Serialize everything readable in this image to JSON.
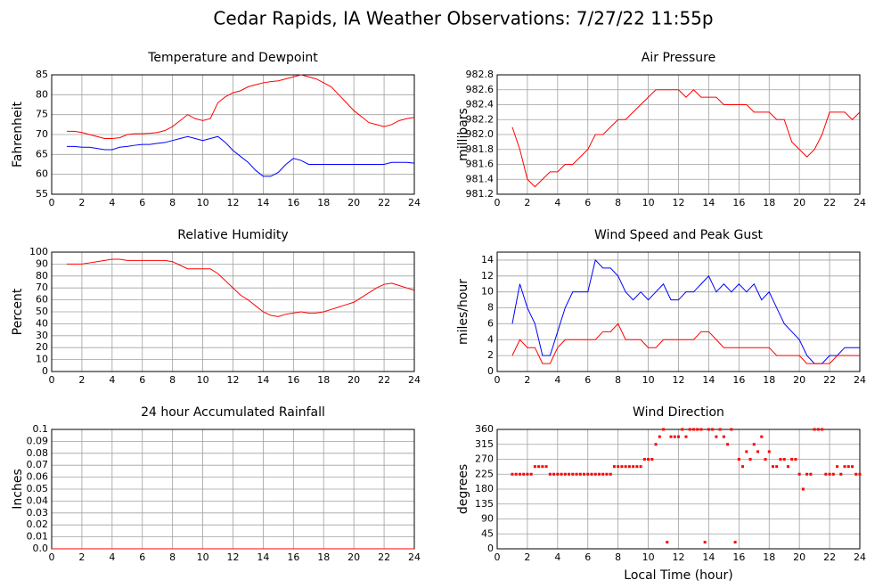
{
  "title": "Cedar Rapids, IA Weather Observations: 7/27/22 11:55p",
  "chart_data": [
    {
      "type": "line",
      "title": "Temperature and Dewpoint",
      "ylabel": "Fahrenheit",
      "x": [
        1,
        1.5,
        2,
        2.5,
        3,
        3.5,
        4,
        4.5,
        5,
        5.5,
        6,
        6.5,
        7,
        7.5,
        8,
        8.5,
        9,
        9.5,
        10,
        10.5,
        11,
        11.5,
        12,
        12.5,
        13,
        13.5,
        14,
        14.5,
        15,
        15.5,
        16,
        16.5,
        17,
        17.5,
        18,
        18.5,
        19,
        19.5,
        20,
        20.5,
        21,
        21.5,
        22,
        22.5,
        23,
        23.5,
        24
      ],
      "series": [
        {
          "color": "#ff0000",
          "values": [
            70.8,
            70.8,
            70.5,
            70,
            69.5,
            69,
            69,
            69.2,
            70,
            70.2,
            70.2,
            70.3,
            70.5,
            71,
            72,
            73.5,
            75,
            74,
            73.5,
            74,
            78,
            79.5,
            80.5,
            81,
            82,
            82.5,
            83,
            83.3,
            83.5,
            84,
            84.5,
            85,
            84.5,
            84,
            83,
            82,
            80,
            78,
            76,
            74.5,
            73,
            72.5,
            72,
            72.5,
            73.5,
            74,
            74.3
          ]
        },
        {
          "color": "#0000ff",
          "values": [
            67,
            67,
            66.8,
            66.8,
            66.5,
            66.2,
            66.2,
            66.8,
            67,
            67.3,
            67.5,
            67.5,
            67.8,
            68,
            68.5,
            69,
            69.5,
            69,
            68.5,
            69,
            69.5,
            68,
            66,
            64.5,
            63,
            61,
            59.5,
            59.5,
            60.5,
            62.5,
            64,
            63.5,
            62.5,
            62.5,
            62.5,
            62.5,
            62.5,
            62.5,
            62.5,
            62.5,
            62.5,
            62.5,
            62.5,
            63,
            63,
            63,
            62.8
          ]
        }
      ],
      "xlim": [
        0,
        24
      ],
      "xticks": [
        0,
        2,
        4,
        6,
        8,
        10,
        12,
        14,
        16,
        18,
        20,
        22,
        24
      ],
      "ylim": [
        55,
        85
      ],
      "yticks": [
        55,
        60,
        65,
        70,
        75,
        80,
        85
      ],
      "grid": true
    },
    {
      "type": "line",
      "title": "Air Pressure",
      "ylabel": "millibars",
      "x": [
        1,
        1.5,
        2,
        2.5,
        3,
        3.5,
        4,
        4.5,
        5,
        5.5,
        6,
        6.5,
        7,
        7.5,
        8,
        8.5,
        9,
        9.5,
        10,
        10.5,
        11,
        11.5,
        12,
        12.5,
        13,
        13.5,
        14,
        14.5,
        15,
        15.5,
        16,
        16.5,
        17,
        17.5,
        18,
        18.5,
        19,
        19.5,
        20,
        20.5,
        21,
        21.5,
        22,
        22.5,
        23,
        23.5,
        24
      ],
      "values": [
        982.1,
        981.8,
        981.4,
        981.3,
        981.4,
        981.5,
        981.5,
        981.6,
        981.6,
        981.7,
        981.8,
        982.0,
        982.0,
        982.1,
        982.2,
        982.2,
        982.3,
        982.4,
        982.5,
        982.6,
        982.6,
        982.6,
        982.6,
        982.5,
        982.6,
        982.5,
        982.5,
        982.5,
        982.4,
        982.4,
        982.4,
        982.4,
        982.3,
        982.3,
        982.3,
        982.2,
        982.2,
        981.9,
        981.8,
        981.7,
        981.8,
        982.0,
        982.3,
        982.3,
        982.3,
        982.2,
        982.3
      ],
      "color": "#ff0000",
      "xlim": [
        0,
        24
      ],
      "xticks": [
        0,
        2,
        4,
        6,
        8,
        10,
        12,
        14,
        16,
        18,
        20,
        22,
        24
      ],
      "ylim": [
        981.2,
        982.8
      ],
      "yticks": [
        981.2,
        981.4,
        981.6,
        981.8,
        {
          "value": 982,
          "label": "982.0"
        },
        982.2,
        982.4,
        982.6,
        982.8
      ],
      "grid": true
    },
    {
      "type": "line",
      "title": "Relative Humidity",
      "ylabel": "Percent",
      "x": [
        1,
        1.5,
        2,
        2.5,
        3,
        3.5,
        4,
        4.5,
        5,
        5.5,
        6,
        6.5,
        7,
        7.5,
        8,
        8.5,
        9,
        9.5,
        10,
        10.5,
        11,
        11.5,
        12,
        12.5,
        13,
        13.5,
        14,
        14.5,
        15,
        15.5,
        16,
        16.5,
        17,
        17.5,
        18,
        18.5,
        19,
        19.5,
        20,
        20.5,
        21,
        21.5,
        22,
        22.5,
        23,
        23.5,
        24
      ],
      "values": [
        90,
        90,
        90,
        91,
        92,
        93,
        94,
        94,
        93,
        93,
        93,
        93,
        93,
        93,
        92,
        89,
        86,
        86,
        86,
        86,
        82,
        76,
        70,
        64,
        60,
        55,
        50,
        47,
        46,
        48,
        49,
        50,
        49,
        49,
        50,
        52,
        54,
        56,
        58,
        62,
        66,
        70,
        73,
        74,
        72,
        70,
        68
      ],
      "color": "#ff0000",
      "xlim": [
        0,
        24
      ],
      "xticks": [
        0,
        2,
        4,
        6,
        8,
        10,
        12,
        14,
        16,
        18,
        20,
        22,
        24
      ],
      "ylim": [
        0,
        100
      ],
      "yticks": [
        0,
        10,
        20,
        30,
        40,
        50,
        60,
        70,
        80,
        90,
        100
      ],
      "grid": true
    },
    {
      "type": "line",
      "title": "Wind Speed and Peak Gust",
      "ylabel": "miles/hour",
      "x": [
        1,
        1.5,
        2,
        2.5,
        3,
        3.5,
        4,
        4.5,
        5,
        5.5,
        6,
        6.5,
        7,
        7.5,
        8,
        8.5,
        9,
        9.5,
        10,
        10.5,
        11,
        11.5,
        12,
        12.5,
        13,
        13.5,
        14,
        14.5,
        15,
        15.5,
        16,
        16.5,
        17,
        17.5,
        18,
        18.5,
        19,
        19.5,
        20,
        20.5,
        21,
        21.5,
        22,
        22.5,
        23,
        23.5,
        24
      ],
      "series": [
        {
          "color": "#0000ff",
          "values": [
            6,
            11,
            8,
            6,
            2,
            2,
            5,
            8,
            10,
            10,
            10,
            14,
            13,
            13,
            12,
            10,
            9,
            10,
            9,
            10,
            11,
            9,
            9,
            10,
            10,
            11,
            12,
            10,
            11,
            10,
            11,
            10,
            11,
            9,
            10,
            8,
            6,
            5,
            4,
            2,
            1,
            1,
            2,
            2,
            3,
            3,
            3
          ]
        },
        {
          "color": "#ff0000",
          "values": [
            2,
            4,
            3,
            3,
            1,
            1,
            3,
            4,
            4,
            4,
            4,
            4,
            5,
            5,
            6,
            4,
            4,
            4,
            3,
            3,
            4,
            4,
            4,
            4,
            4,
            5,
            5,
            4,
            3,
            3,
            3,
            3,
            3,
            3,
            3,
            2,
            2,
            2,
            2,
            1,
            1,
            1,
            1,
            2,
            2,
            2,
            2
          ]
        }
      ],
      "xlim": [
        0,
        24
      ],
      "xticks": [
        0,
        2,
        4,
        6,
        8,
        10,
        12,
        14,
        16,
        18,
        20,
        22,
        24
      ],
      "ylim": [
        0,
        15
      ],
      "yticks": [
        0,
        2,
        4,
        6,
        8,
        10,
        12,
        14
      ],
      "grid": true
    },
    {
      "type": "line",
      "title": "24 hour Accumulated Rainfall",
      "ylabel": "Inches",
      "x": [
        0,
        24
      ],
      "values": [
        0,
        0
      ],
      "color": "#ff0000",
      "xlim": [
        0,
        24
      ],
      "xticks": [
        0,
        2,
        4,
        6,
        8,
        10,
        12,
        14,
        16,
        18,
        20,
        22,
        24
      ],
      "ylim": [
        0,
        0.1
      ],
      "yticks": [
        {
          "value": 0,
          "label": "0.0"
        },
        0.01,
        0.02,
        0.03,
        0.04,
        0.05,
        0.06,
        0.07,
        0.08,
        0.09,
        0.1
      ],
      "grid": true
    },
    {
      "type": "scatter",
      "title": "Wind Direction",
      "ylabel": "degrees",
      "xlabel": "Local Time (hour)",
      "x": [
        1,
        1.25,
        1.5,
        1.75,
        2,
        2.25,
        2.5,
        2.75,
        3,
        3.25,
        3.5,
        3.75,
        4,
        4.25,
        4.5,
        4.75,
        5,
        5.25,
        5.5,
        5.75,
        6,
        6.25,
        6.5,
        6.75,
        7,
        7.25,
        7.5,
        7.75,
        8,
        8.25,
        8.5,
        8.75,
        9,
        9.25,
        9.5,
        9.75,
        10,
        10.25,
        10.5,
        10.75,
        11,
        11.25,
        11.5,
        11.75,
        12,
        12.25,
        12.5,
        12.75,
        13,
        13.25,
        13.5,
        13.75,
        14,
        14.25,
        14.5,
        14.75,
        15,
        15.25,
        15.5,
        15.75,
        16,
        16.25,
        16.5,
        16.75,
        17,
        17.25,
        17.5,
        17.75,
        18,
        18.25,
        18.5,
        18.75,
        19,
        19.25,
        19.5,
        19.75,
        20,
        20.25,
        20.5,
        20.75,
        21,
        21.25,
        21.5,
        21.75,
        22,
        22.25,
        22.5,
        22.75,
        23,
        23.25,
        23.5,
        23.75,
        24
      ],
      "values": [
        225,
        225,
        225,
        225,
        225,
        225,
        248,
        248,
        248,
        248,
        225,
        225,
        225,
        225,
        225,
        225,
        225,
        225,
        225,
        225,
        225,
        225,
        225,
        225,
        225,
        225,
        225,
        248,
        248,
        248,
        248,
        248,
        248,
        248,
        248,
        270,
        270,
        270,
        315,
        338,
        360,
        20,
        338,
        338,
        338,
        360,
        338,
        360,
        360,
        360,
        360,
        20,
        360,
        360,
        338,
        360,
        338,
        315,
        360,
        20,
        270,
        248,
        293,
        270,
        315,
        293,
        338,
        270,
        293,
        248,
        248,
        270,
        270,
        248,
        270,
        270,
        225,
        180,
        225,
        225,
        360,
        360,
        360,
        225,
        225,
        225,
        248,
        225,
        248,
        248,
        248,
        225,
        225
      ],
      "color": "#ff0000",
      "xlim": [
        0,
        24
      ],
      "xticks": [
        0,
        2,
        4,
        6,
        8,
        10,
        12,
        14,
        16,
        18,
        20,
        22,
        24
      ],
      "ylim": [
        0,
        360
      ],
      "yticks": [
        0,
        45,
        90,
        135,
        180,
        225,
        270,
        315,
        360
      ],
      "grid": true
    }
  ]
}
